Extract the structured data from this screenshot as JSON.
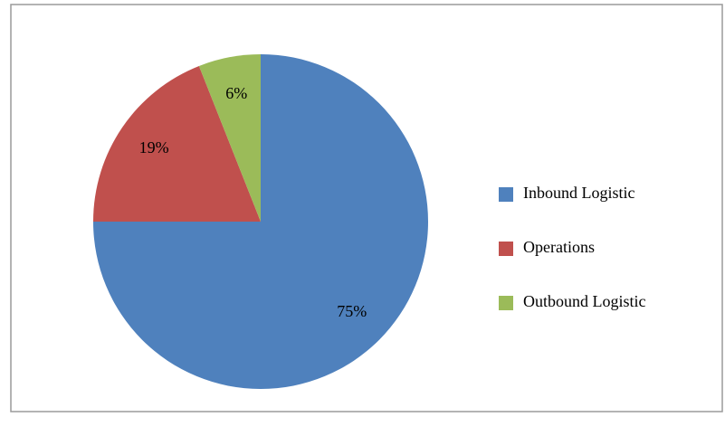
{
  "chart_data": {
    "type": "pie",
    "categories": [
      "Inbound Logistic",
      "Operations",
      "Outbound Logistic"
    ],
    "values": [
      75,
      19,
      6
    ],
    "value_labels": [
      "75%",
      "19%",
      "6%"
    ],
    "colors": [
      "#4f81bd",
      "#c0504d",
      "#9bbb59"
    ],
    "legend": "right"
  }
}
